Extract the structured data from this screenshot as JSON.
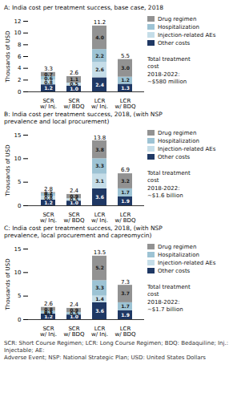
{
  "chart_data": [
    {
      "type": "bar",
      "stacked": true,
      "data_labels": true,
      "legend": "upper right",
      "title": "A: India cost per treatment success, base case, 2018",
      "y_label": "Thousands of USD",
      "categories": [
        "SCR\nw/ Inj.",
        "SCR\nw/ BDQ",
        "LCR\nw/ Inj.",
        "LCR\nw/ BDQ"
      ],
      "series": [
        {
          "name": "Other costs",
          "color": "#1f3864",
          "values": [
            1.2,
            1.0,
            2.4,
            1.3
          ],
          "value_labels": [
            "1.2",
            "1.0",
            "2.4",
            "1.3"
          ]
        },
        {
          "name": "Injection-related AEs",
          "color": "#c5dde8",
          "values": [
            0.8,
            0.5,
            2.6,
            0.0
          ],
          "value_labels": [
            "0.8",
            "0.5",
            "2.6",
            null
          ]
        },
        {
          "name": "Hospitalization",
          "color": "#9dc3d4",
          "values": [
            0.6,
            0.0,
            2.2,
            1.2
          ],
          "value_labels": [
            "0.6",
            null,
            "2.2",
            "1.2"
          ]
        },
        {
          "name": "Drug regimen",
          "color": "#929292",
          "values": [
            0.7,
            1.1,
            4.0,
            3.0
          ],
          "value_labels": [
            "0.7",
            "1.1",
            "4.0",
            "3.0"
          ]
        }
      ],
      "totals": [
        3.3,
        2.6,
        11.2,
        5.5
      ],
      "ylim": [
        0,
        12
      ],
      "yticks": [
        0,
        2,
        4,
        6,
        8,
        10,
        12
      ],
      "annotations": [
        "Total treatment\ncost\n2018-2022:\n~$580 million"
      ]
    },
    {
      "type": "bar",
      "stacked": true,
      "data_labels": true,
      "legend": "upper right",
      "title": "B: India cost per treatment success, 2018, (with NSP\nprevalence and local procurement)",
      "y_label": "Thousands of USD",
      "categories": [
        "SCR\nw/ Inj.",
        "SCR\nw/ BDQ",
        "LCR\nw/ Inj.",
        "LCR\nw/ BDQ"
      ],
      "series": [
        {
          "name": "Other costs",
          "color": "#1f3864",
          "values": [
            1.2,
            1.0,
            3.6,
            1.9
          ],
          "value_labels": [
            "1.2",
            "1.0",
            "3.6",
            "1.9"
          ]
        },
        {
          "name": "Injection-related AEs",
          "color": "#c5dde8",
          "values": [
            0.8,
            0.5,
            3.1,
            0.0
          ],
          "value_labels": [
            "0.8",
            "0.5",
            "3.1",
            null
          ]
        },
        {
          "name": "Hospitalization",
          "color": "#9dc3d4",
          "values": [
            0.6,
            0.0,
            3.3,
            1.7
          ],
          "value_labels": [
            "0.6",
            null,
            "3.3",
            "1.7"
          ]
        },
        {
          "name": "Drug regimen",
          "color": "#929292",
          "values": [
            0.2,
            0.9,
            3.8,
            3.2
          ],
          "value_labels": [
            "0.2",
            "0.9",
            "3.8",
            "3.2"
          ]
        }
      ],
      "totals": [
        2.8,
        2.4,
        13.8,
        6.9
      ],
      "ylim": [
        0,
        15
      ],
      "yticks": [
        0,
        5,
        10,
        15
      ],
      "annotations": [
        "Total treatment\ncost\n2018-2022:\n~$1.6 billion"
      ]
    },
    {
      "type": "bar",
      "stacked": true,
      "data_labels": true,
      "legend": "upper right",
      "title": "C: India cost per treatment success, 2018, (with NSP\nprevalence, local procurement and capreomycin)",
      "y_label": "Thousands of USD",
      "categories": [
        "SCR\nw/ Inj.",
        "SCR\nw/ BDQ",
        "LCR\nw/ Inj.",
        "LCR\nw/ BDQ"
      ],
      "series": [
        {
          "name": "Other costs",
          "color": "#1f3864",
          "values": [
            1.2,
            1.0,
            3.6,
            1.9
          ],
          "value_labels": [
            "1.2",
            "1.0",
            "3.6",
            "1.9"
          ]
        },
        {
          "name": "Injection-related AEs",
          "color": "#c5dde8",
          "values": [
            0.1,
            0.0,
            1.4,
            0.0
          ],
          "value_labels": [
            "0.1",
            null,
            "1.4",
            null
          ]
        },
        {
          "name": "Hospitalization",
          "color": "#9dc3d4",
          "values": [
            0.5,
            0.5,
            3.3,
            1.7
          ],
          "value_labels": [
            "0.5",
            "0.5",
            "3.3",
            "1.7"
          ]
        },
        {
          "name": "Drug regimen",
          "color": "#929292",
          "values": [
            0.8,
            0.9,
            5.2,
            3.7
          ],
          "value_labels": [
            "0.8",
            "0.9",
            "5.2",
            "3.7"
          ]
        }
      ],
      "totals": [
        2.6,
        2.4,
        13.5,
        7.3
      ],
      "ylim": [
        0,
        15
      ],
      "yticks": [
        0,
        5,
        10,
        15
      ],
      "annotations": [
        "Total treatment\ncost\n2018-2022:\n~$1.7 billion"
      ],
      "footnote": "SCR: Short Course Regimen; LCR: Long Course Regimen; BDQ: Bedaquiline; Inj.: Injectable; AE:\nAdverse Event; NSP: National Strategic Plan; USD: United States Dollars"
    }
  ]
}
